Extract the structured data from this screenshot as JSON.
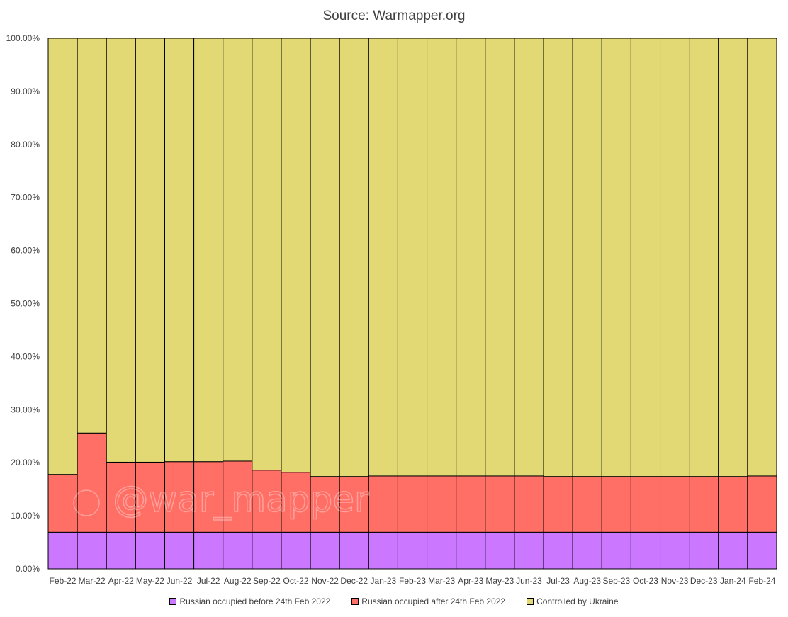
{
  "chart_data": {
    "type": "bar",
    "stacked": true,
    "title": "Source: Warmapper.org",
    "watermark": "@war_mapper",
    "categories": [
      "Feb-22",
      "Mar-22",
      "Apr-22",
      "May-22",
      "Jun-22",
      "Jul-22",
      "Aug-22",
      "Sep-22",
      "Oct-22",
      "Nov-22",
      "Dec-22",
      "Jan-23",
      "Feb-23",
      "Mar-23",
      "Apr-23",
      "May-23",
      "Jun-23",
      "Jul-23",
      "Aug-23",
      "Sep-23",
      "Oct-23",
      "Nov-23",
      "Dec-23",
      "Jan-24",
      "Feb-24"
    ],
    "series": [
      {
        "name": "Russian occupied before 24th Feb 2022",
        "color": "#cc77ff",
        "values": [
          6.9,
          6.9,
          6.9,
          6.9,
          6.9,
          6.9,
          6.9,
          6.9,
          6.9,
          6.9,
          6.9,
          6.9,
          6.9,
          6.9,
          6.9,
          6.9,
          6.9,
          6.9,
          6.9,
          6.9,
          6.9,
          6.9,
          6.9,
          6.9,
          6.9
        ]
      },
      {
        "name": "Russian occupied after 24th Feb 2022",
        "color": "#ff6f66",
        "values": [
          10.9,
          18.7,
          13.2,
          13.2,
          13.3,
          13.3,
          13.4,
          11.7,
          11.3,
          10.5,
          10.5,
          10.6,
          10.6,
          10.6,
          10.6,
          10.6,
          10.6,
          10.5,
          10.5,
          10.5,
          10.5,
          10.5,
          10.5,
          10.5,
          10.6
        ]
      },
      {
        "name": "Controlled by Ukraine",
        "color": "#e2d975",
        "values": [
          82.2,
          74.4,
          79.9,
          79.9,
          79.8,
          79.8,
          79.7,
          81.4,
          81.8,
          82.6,
          82.6,
          82.5,
          82.5,
          82.5,
          82.5,
          82.5,
          82.5,
          82.6,
          82.6,
          82.6,
          82.6,
          82.6,
          82.6,
          82.6,
          82.5
        ]
      }
    ],
    "yticks": [
      "0.00%",
      "10.00%",
      "20.00%",
      "30.00%",
      "40.00%",
      "50.00%",
      "60.00%",
      "70.00%",
      "80.00%",
      "90.00%",
      "100.00%"
    ],
    "ylim": [
      0,
      100
    ],
    "legend_position": "bottom",
    "grid": false
  }
}
